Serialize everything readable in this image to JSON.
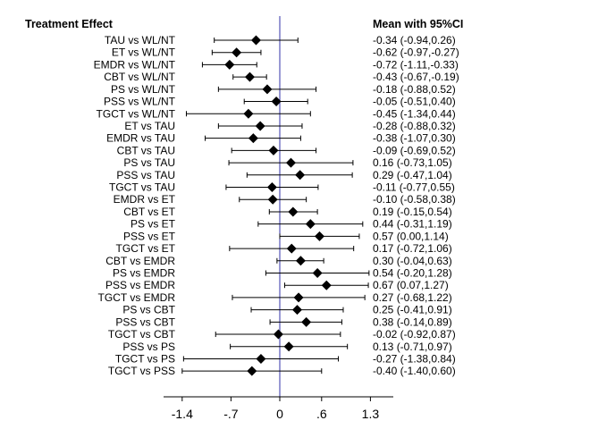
{
  "chart_data": {
    "type": "forest",
    "title": "",
    "left_header": "Treatment Effect",
    "right_header": "Mean with 95%CI",
    "xlim": [
      -1.45,
      1.6
    ],
    "ref_line": 0,
    "ref_line_color": "#3333aa",
    "x_ticks": [
      -1.4,
      -0.7,
      0,
      0.6,
      1.3
    ],
    "x_tick_labels": [
      "-1.4",
      "-.7",
      "0",
      ".6",
      "1.3"
    ],
    "rows": [
      {
        "label": "TAU vs WL/NT",
        "mean": -0.34,
        "lo": -0.94,
        "hi": 0.26,
        "text": "-0.34 (-0.94,0.26)"
      },
      {
        "label": "ET vs WL/NT",
        "mean": -0.62,
        "lo": -0.97,
        "hi": -0.27,
        "text": "-0.62 (-0.97,-0.27)"
      },
      {
        "label": "EMDR vs WL/NT",
        "mean": -0.72,
        "lo": -1.11,
        "hi": -0.33,
        "text": "-0.72 (-1.11,-0.33)"
      },
      {
        "label": "CBT vs WL/NT",
        "mean": -0.43,
        "lo": -0.67,
        "hi": -0.19,
        "text": "-0.43 (-0.67,-0.19)"
      },
      {
        "label": "PS vs WL/NT",
        "mean": -0.18,
        "lo": -0.88,
        "hi": 0.52,
        "text": "-0.18 (-0.88,0.52)"
      },
      {
        "label": "PSS vs WL/NT",
        "mean": -0.05,
        "lo": -0.51,
        "hi": 0.4,
        "text": "-0.05 (-0.51,0.40)"
      },
      {
        "label": "TGCT vs WL/NT",
        "mean": -0.45,
        "lo": -1.34,
        "hi": 0.44,
        "text": "-0.45 (-1.34,0.44)"
      },
      {
        "label": "ET vs TAU",
        "mean": -0.28,
        "lo": -0.88,
        "hi": 0.32,
        "text": "-0.28 (-0.88,0.32)"
      },
      {
        "label": "EMDR vs TAU",
        "mean": -0.38,
        "lo": -1.07,
        "hi": 0.3,
        "text": "-0.38 (-1.07,0.30)"
      },
      {
        "label": "CBT vs TAU",
        "mean": -0.09,
        "lo": -0.69,
        "hi": 0.52,
        "text": "-0.09 (-0.69,0.52)"
      },
      {
        "label": "PS vs TAU",
        "mean": 0.16,
        "lo": -0.73,
        "hi": 1.05,
        "text": "0.16 (-0.73,1.05)"
      },
      {
        "label": "PSS vs TAU",
        "mean": 0.29,
        "lo": -0.47,
        "hi": 1.04,
        "text": "0.29 (-0.47,1.04)"
      },
      {
        "label": "TGCT vs TAU",
        "mean": -0.11,
        "lo": -0.77,
        "hi": 0.55,
        "text": "-0.11 (-0.77,0.55)"
      },
      {
        "label": "EMDR vs ET",
        "mean": -0.1,
        "lo": -0.58,
        "hi": 0.38,
        "text": "-0.10 (-0.58,0.38)"
      },
      {
        "label": "CBT vs ET",
        "mean": 0.19,
        "lo": -0.15,
        "hi": 0.54,
        "text": "0.19 (-0.15,0.54)"
      },
      {
        "label": "PS vs ET",
        "mean": 0.44,
        "lo": -0.31,
        "hi": 1.19,
        "text": "0.44 (-0.31,1.19)"
      },
      {
        "label": "PSS vs ET",
        "mean": 0.57,
        "lo": 0.0,
        "hi": 1.14,
        "text": "0.57 (0.00,1.14)"
      },
      {
        "label": "TGCT vs ET",
        "mean": 0.17,
        "lo": -0.72,
        "hi": 1.06,
        "text": "0.17 (-0.72,1.06)"
      },
      {
        "label": "CBT vs EMDR",
        "mean": 0.3,
        "lo": -0.04,
        "hi": 0.63,
        "text": "0.30 (-0.04,0.63)"
      },
      {
        "label": "PS vs EMDR",
        "mean": 0.54,
        "lo": -0.2,
        "hi": 1.28,
        "text": "0.54 (-0.20,1.28)"
      },
      {
        "label": "PSS vs EMDR",
        "mean": 0.67,
        "lo": 0.07,
        "hi": 1.27,
        "text": "0.67 (0.07,1.27)"
      },
      {
        "label": "TGCT vs EMDR",
        "mean": 0.27,
        "lo": -0.68,
        "hi": 1.22,
        "text": "0.27 (-0.68,1.22)"
      },
      {
        "label": "PS vs CBT",
        "mean": 0.25,
        "lo": -0.41,
        "hi": 0.91,
        "text": "0.25 (-0.41,0.91)"
      },
      {
        "label": "PSS vs CBT",
        "mean": 0.38,
        "lo": -0.14,
        "hi": 0.89,
        "text": "0.38 (-0.14,0.89)"
      },
      {
        "label": "TGCT vs CBT",
        "mean": -0.02,
        "lo": -0.92,
        "hi": 0.87,
        "text": "-0.02 (-0.92,0.87)"
      },
      {
        "label": "PSS vs PS",
        "mean": 0.13,
        "lo": -0.71,
        "hi": 0.97,
        "text": "0.13 (-0.71,0.97)"
      },
      {
        "label": "TGCT vs PS",
        "mean": -0.27,
        "lo": -1.38,
        "hi": 0.84,
        "text": "-0.27 (-1.38,0.84)"
      },
      {
        "label": "TGCT vs PSS",
        "mean": -0.4,
        "lo": -1.4,
        "hi": 0.6,
        "text": "-0.40 (-1.40,0.60)"
      }
    ]
  }
}
